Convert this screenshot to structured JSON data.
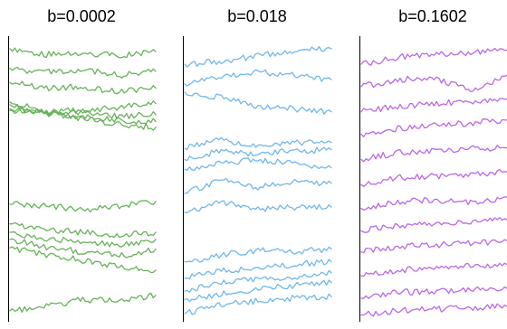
{
  "chart_data": [
    {
      "type": "line",
      "title": "b=0.0002",
      "color": "#67b25a",
      "x": [
        0,
        0.25,
        0.5,
        0.75,
        1
      ],
      "series": [
        {
          "values": [
            0.955,
            0.935,
            0.94,
            0.93,
            0.945
          ]
        },
        {
          "values": [
            0.885,
            0.87,
            0.88,
            0.86,
            0.875
          ]
        },
        {
          "values": [
            0.835,
            0.815,
            0.82,
            0.8,
            0.815
          ]
        },
        {
          "values": [
            0.765,
            0.73,
            0.735,
            0.745,
            0.76
          ]
        },
        {
          "values": [
            0.755,
            0.72,
            0.73,
            0.715,
            0.72
          ]
        },
        {
          "values": [
            0.74,
            0.725,
            0.71,
            0.7,
            0.695
          ]
        },
        {
          "values": [
            0.735,
            0.73,
            0.705,
            0.685,
            0.675
          ]
        },
        {
          "values": [
            0.4,
            0.395,
            0.38,
            0.395,
            0.41
          ]
        },
        {
          "values": [
            0.33,
            0.31,
            0.3,
            0.29,
            0.3
          ]
        },
        {
          "values": [
            0.3,
            0.275,
            0.27,
            0.255,
            0.275
          ]
        },
        {
          "values": [
            0.275,
            0.245,
            0.23,
            0.215,
            0.24
          ]
        },
        {
          "values": [
            0.245,
            0.22,
            0.2,
            0.175,
            0.165
          ]
        },
        {
          "values": [
            0.02,
            0.035,
            0.06,
            0.055,
            0.075
          ]
        }
      ]
    },
    {
      "type": "line",
      "title": "b=0.018",
      "color": "#72b7eb",
      "x": [
        0,
        0.25,
        0.5,
        0.75,
        1
      ],
      "series": [
        {
          "values": [
            0.9,
            0.91,
            0.93,
            0.95,
            0.955
          ]
        },
        {
          "values": [
            0.83,
            0.86,
            0.87,
            0.86,
            0.845
          ]
        },
        {
          "values": [
            0.8,
            0.78,
            0.75,
            0.74,
            0.73
          ]
        },
        {
          "values": [
            0.6,
            0.63,
            0.61,
            0.62,
            0.62
          ]
        },
        {
          "values": [
            0.56,
            0.59,
            0.58,
            0.59,
            0.595
          ]
        },
        {
          "values": [
            0.525,
            0.545,
            0.56,
            0.545,
            0.53
          ]
        },
        {
          "values": [
            0.44,
            0.485,
            0.46,
            0.48,
            0.475
          ]
        },
        {
          "values": [
            0.37,
            0.41,
            0.38,
            0.39,
            0.39
          ]
        },
        {
          "values": [
            0.195,
            0.22,
            0.235,
            0.23,
            0.24
          ]
        },
        {
          "values": [
            0.135,
            0.165,
            0.17,
            0.185,
            0.195
          ]
        },
        {
          "values": [
            0.09,
            0.12,
            0.135,
            0.14,
            0.155
          ]
        },
        {
          "values": [
            0.06,
            0.08,
            0.095,
            0.11,
            0.12
          ]
        },
        {
          "values": [
            0.01,
            0.045,
            0.055,
            0.065,
            0.07
          ]
        }
      ]
    },
    {
      "type": "line",
      "title": "b=0.1602",
      "color": "#bb68e6",
      "x": [
        0,
        0.25,
        0.5,
        0.75,
        1
      ],
      "series": [
        {
          "values": [
            0.9,
            0.925,
            0.935,
            0.94,
            0.95
          ]
        },
        {
          "values": [
            0.82,
            0.845,
            0.85,
            0.805,
            0.86
          ]
        },
        {
          "values": [
            0.73,
            0.75,
            0.76,
            0.765,
            0.775
          ]
        },
        {
          "values": [
            0.65,
            0.67,
            0.68,
            0.69,
            0.7
          ]
        },
        {
          "values": [
            0.56,
            0.585,
            0.59,
            0.6,
            0.6
          ]
        },
        {
          "values": [
            0.47,
            0.495,
            0.5,
            0.505,
            0.515
          ]
        },
        {
          "values": [
            0.385,
            0.41,
            0.415,
            0.405,
            0.425
          ]
        },
        {
          "values": [
            0.305,
            0.325,
            0.33,
            0.34,
            0.345
          ]
        },
        {
          "values": [
            0.23,
            0.25,
            0.255,
            0.26,
            0.27
          ]
        },
        {
          "values": [
            0.145,
            0.165,
            0.175,
            0.18,
            0.185
          ]
        },
        {
          "values": [
            0.065,
            0.085,
            0.09,
            0.095,
            0.1
          ]
        },
        {
          "values": [
            0.005,
            0.02,
            0.025,
            0.03,
            0.035
          ]
        }
      ]
    }
  ]
}
